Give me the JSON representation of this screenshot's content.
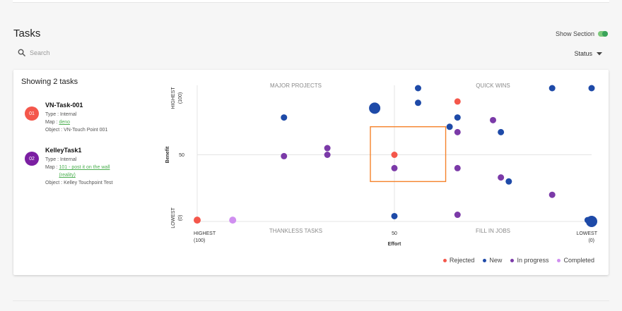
{
  "section": {
    "title": "Tasks",
    "show_section_label": "Show Section"
  },
  "search": {
    "placeholder": "Search"
  },
  "filter": {
    "status_label": "Status"
  },
  "summary": {
    "showing": "Showing 2 tasks"
  },
  "tasks": [
    {
      "badge": "01",
      "badge_color": "#f4574b",
      "name": "VN-Task-001",
      "type_label": "Type : ",
      "type_value": "Internal",
      "map_label": "Map : ",
      "map_value": "deno",
      "object_label": "Object : ",
      "object_value": "VN-Touch Point 001"
    },
    {
      "badge": "02",
      "badge_color": "#7b1fa2",
      "name": "KelleyTask1",
      "type_label": "Type : ",
      "type_value": "Internal",
      "map_label": "Map : ",
      "map_value": "101 - post it on the wall",
      "map_value_line2": "(reality)",
      "object_label": "Object : ",
      "object_value": "Kelley Touchpoint Test"
    }
  ],
  "colors": {
    "Rejected": "#f4574b",
    "New": "#1e4aa8",
    "In progress": "#7b3aa8",
    "Completed": "#d08ff0",
    "highlight": "#f5822a",
    "grid": "#e4e4e4"
  },
  "chart_data": {
    "type": "scatter",
    "xlabel": "Effort",
    "ylabel": "Benefit",
    "xlim": [
      100,
      0
    ],
    "ylim": [
      0,
      100
    ],
    "x_ticks": [
      {
        "value": 100,
        "line1": "HIGHEST",
        "line2": "(100)"
      },
      {
        "value": 50,
        "line1": "50",
        "line2": ""
      },
      {
        "value": 0,
        "line1": "LOWEST",
        "line2": "(0)"
      }
    ],
    "y_ticks": [
      {
        "value": 100,
        "line1": "HIGHEST",
        "line2": "(100)"
      },
      {
        "value": 50,
        "line1": "50",
        "line2": ""
      },
      {
        "value": 0,
        "line1": "LOWEST",
        "line2": "(0)"
      }
    ],
    "quadrants": {
      "top_left": "MAJOR PROJECTS",
      "top_right": "QUICK WINS",
      "bottom_left": "THANKLESS TASKS",
      "bottom_right": "FILL IN JOBS"
    },
    "highlight_range": {
      "x": [
        37,
        50
      ],
      "y": [
        31,
        70
      ]
    },
    "legend": [
      "Rejected",
      "New",
      "In progress",
      "Completed"
    ],
    "points": [
      {
        "x": 100,
        "y": 1,
        "status": "Rejected",
        "size": "m"
      },
      {
        "x": 91,
        "y": 1,
        "status": "Completed",
        "size": "m"
      },
      {
        "x": 78,
        "y": 78,
        "status": "New",
        "size": "s"
      },
      {
        "x": 78,
        "y": 49,
        "status": "In progress",
        "size": "s"
      },
      {
        "x": 67,
        "y": 55,
        "status": "In progress",
        "size": "s"
      },
      {
        "x": 67,
        "y": 50,
        "status": "In progress",
        "size": "s"
      },
      {
        "x": 55,
        "y": 85,
        "status": "New",
        "size": "l"
      },
      {
        "x": 50,
        "y": 50,
        "status": "Rejected",
        "size": "s"
      },
      {
        "x": 50,
        "y": 40,
        "status": "In progress",
        "size": "s"
      },
      {
        "x": 50,
        "y": 4,
        "status": "New",
        "size": "s"
      },
      {
        "x": 44,
        "y": 100,
        "status": "New",
        "size": "s"
      },
      {
        "x": 44,
        "y": 89,
        "status": "New",
        "size": "s"
      },
      {
        "x": 34,
        "y": 90,
        "status": "Rejected",
        "size": "s"
      },
      {
        "x": 34,
        "y": 78,
        "status": "New",
        "size": "s"
      },
      {
        "x": 36,
        "y": 71,
        "status": "New",
        "size": "s"
      },
      {
        "x": 34,
        "y": 67,
        "status": "In progress",
        "size": "s"
      },
      {
        "x": 25,
        "y": 76,
        "status": "In progress",
        "size": "s"
      },
      {
        "x": 23,
        "y": 67,
        "status": "New",
        "size": "s"
      },
      {
        "x": 34,
        "y": 40,
        "status": "In progress",
        "size": "s"
      },
      {
        "x": 23,
        "y": 33,
        "status": "In progress",
        "size": "s"
      },
      {
        "x": 21,
        "y": 30,
        "status": "New",
        "size": "s"
      },
      {
        "x": 34,
        "y": 5,
        "status": "In progress",
        "size": "s"
      },
      {
        "x": 10,
        "y": 100,
        "status": "New",
        "size": "s"
      },
      {
        "x": 0,
        "y": 100,
        "status": "New",
        "size": "s"
      },
      {
        "x": 10,
        "y": 20,
        "status": "In progress",
        "size": "s"
      },
      {
        "x": 1,
        "y": 1,
        "status": "New",
        "size": "s"
      },
      {
        "x": 0,
        "y": 0,
        "status": "New",
        "size": "l"
      }
    ]
  }
}
